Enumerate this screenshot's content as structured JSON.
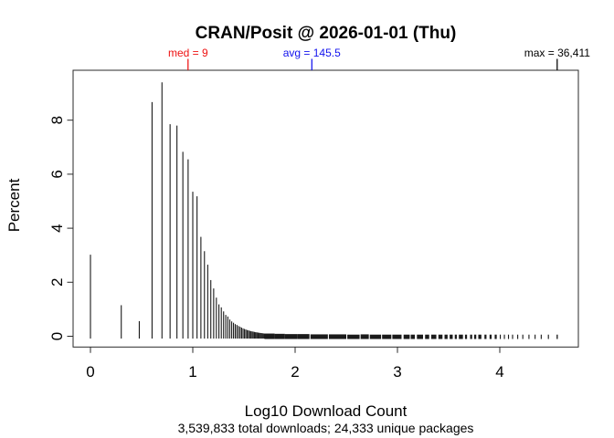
{
  "chart_data": {
    "type": "bar",
    "subtype": "spike-histogram",
    "title": "CRAN/Posit @ 2026-01-01 (Thu)",
    "xlabel": "Log10 Download Count",
    "ylabel": "Percent",
    "footnote": "3,539,833 total downloads; 24,333 unique packages",
    "x_ticks": [
      "0",
      "1",
      "2",
      "3",
      "4"
    ],
    "y_ticks": [
      "0",
      "2",
      "4",
      "6",
      "8"
    ],
    "xlim": [
      -0.17,
      4.77
    ],
    "ylim": [
      -0.4,
      9.85
    ],
    "grid": false,
    "legend": null,
    "spike_color": "#1a1a1a",
    "frame_color": "#2a2a2a",
    "annotations": [
      {
        "id": "median",
        "label": "med = 9",
        "value": 9,
        "x_log": 0.954,
        "color": "#ee1111"
      },
      {
        "id": "mean",
        "label": "avg = 145.5",
        "value": 145.5,
        "x_log": 2.163,
        "color": "#1111ee"
      },
      {
        "id": "max",
        "label": "max = 36,411",
        "value": 36411,
        "x_log": 4.561,
        "color": "#000000"
      }
    ],
    "series_name": "Percent of packages at each download count (x = log10 of count)",
    "spikes": [
      [
        1,
        3.02
      ],
      [
        2,
        1.15
      ],
      [
        3,
        0.56
      ],
      [
        4,
        8.67
      ],
      [
        5,
        9.4
      ],
      [
        6,
        7.85
      ],
      [
        7,
        7.8
      ],
      [
        8,
        6.83
      ],
      [
        9,
        6.55
      ],
      [
        10,
        5.35
      ],
      [
        11,
        5.18
      ],
      [
        12,
        3.68
      ],
      [
        13,
        3.15
      ],
      [
        14,
        2.65
      ],
      [
        15,
        2.08
      ],
      [
        16,
        1.77
      ],
      [
        17,
        1.43
      ],
      [
        18,
        1.18
      ],
      [
        19,
        1.07
      ],
      [
        20,
        0.92
      ],
      [
        21,
        0.79
      ],
      [
        22,
        0.73
      ],
      [
        23,
        0.62
      ],
      [
        24,
        0.55
      ],
      [
        25,
        0.5
      ],
      [
        26,
        0.45
      ],
      [
        27,
        0.42
      ],
      [
        28,
        0.38
      ],
      [
        29,
        0.35
      ],
      [
        30,
        0.32
      ],
      [
        31,
        0.29
      ],
      [
        32,
        0.27
      ],
      [
        33,
        0.25
      ],
      [
        34,
        0.23
      ],
      [
        35,
        0.22
      ],
      [
        36,
        0.2
      ],
      [
        37,
        0.19
      ],
      [
        38,
        0.18
      ],
      [
        39,
        0.17
      ],
      [
        40,
        0.16
      ],
      [
        41,
        0.15
      ],
      [
        42,
        0.145
      ],
      [
        43,
        0.14
      ],
      [
        44,
        0.13
      ],
      [
        45,
        0.125
      ],
      [
        46,
        0.12
      ],
      [
        47,
        0.115
      ],
      [
        48,
        0.11
      ],
      [
        49,
        0.105
      ],
      [
        50,
        0.1
      ]
    ],
    "tail_segments": [
      [
        1.7,
        1.8,
        0.1
      ],
      [
        1.8,
        1.9,
        0.09
      ],
      [
        1.9,
        2.02,
        0.08
      ],
      [
        2.02,
        2.14,
        0.08
      ],
      [
        2.15,
        2.32,
        0.07
      ],
      [
        2.33,
        2.5,
        0.07
      ],
      [
        2.51,
        2.63,
        0.06
      ],
      [
        2.64,
        2.72,
        0.07
      ],
      [
        2.73,
        2.84,
        0.06
      ],
      [
        2.85,
        2.94,
        0.06
      ],
      [
        2.95,
        3.04,
        0.06
      ],
      [
        3.06,
        3.12,
        0.06
      ],
      [
        3.13,
        3.17,
        0.06
      ],
      [
        3.19,
        3.25,
        0.06
      ],
      [
        3.27,
        3.31,
        0.06
      ],
      [
        3.33,
        3.38,
        0.06
      ],
      [
        3.4,
        3.44,
        0.06
      ],
      [
        3.46,
        3.49,
        0.06
      ],
      [
        3.51,
        3.54,
        0.06
      ],
      [
        3.56,
        3.58,
        0.06
      ],
      [
        3.6,
        3.64,
        0.06
      ],
      [
        3.66,
        3.68,
        0.06
      ],
      [
        3.71,
        3.73,
        0.06
      ],
      [
        3.75,
        3.77,
        0.06
      ],
      [
        3.79,
        3.82,
        0.06
      ],
      [
        3.85,
        3.87,
        0.06
      ],
      [
        3.9,
        3.92,
        0.06
      ],
      [
        3.95,
        3.97,
        0.06
      ],
      [
        4.0,
        4.01,
        0.06
      ],
      [
        4.04,
        4.05,
        0.06
      ],
      [
        4.08,
        4.09,
        0.06
      ],
      [
        4.12,
        4.13,
        0.06
      ],
      [
        4.17,
        4.18,
        0.06
      ],
      [
        4.22,
        4.23,
        0.06
      ],
      [
        4.28,
        4.29,
        0.06
      ],
      [
        4.34,
        4.35,
        0.06
      ],
      [
        4.4,
        4.41,
        0.06
      ],
      [
        4.47,
        4.48,
        0.06
      ],
      [
        4.555,
        4.567,
        0.06
      ]
    ]
  }
}
